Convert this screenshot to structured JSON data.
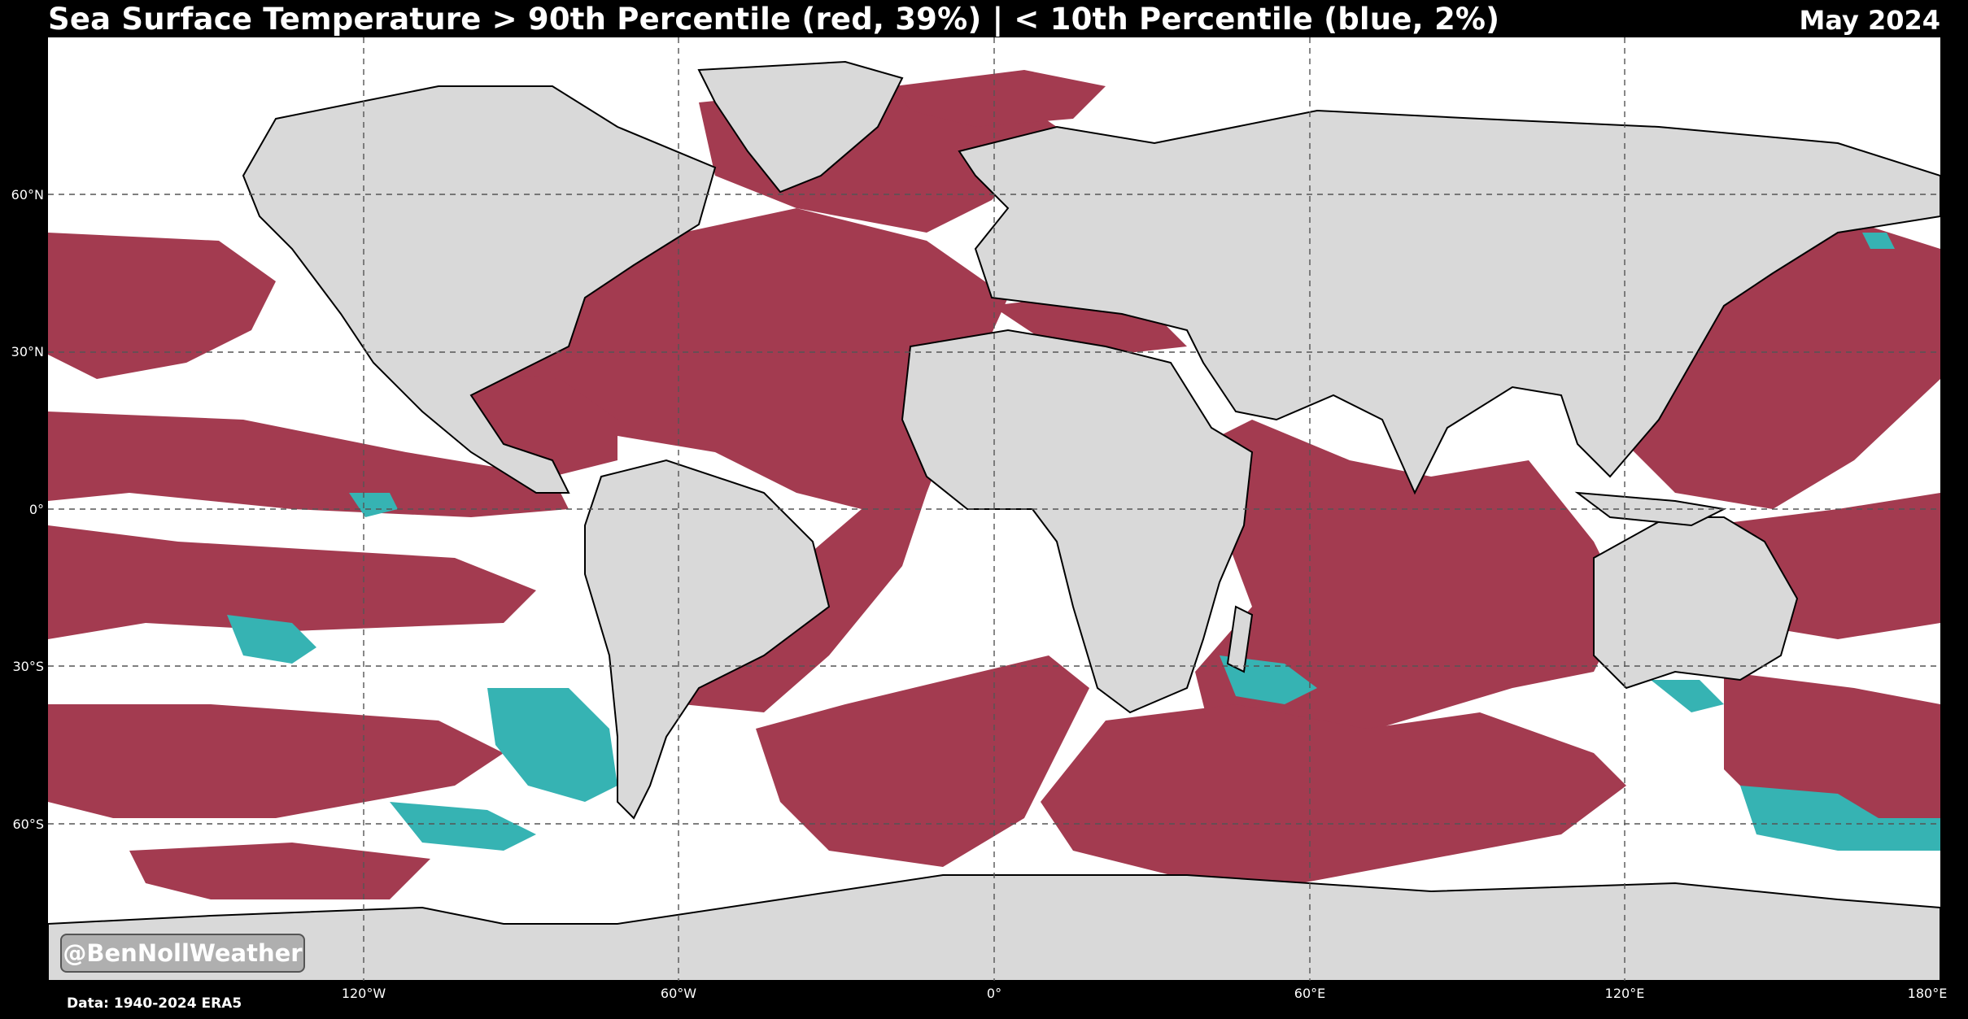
{
  "header": {
    "title": "Sea Surface Temperature > 90th Percentile (red, 39%) | < 10th Percentile (blue, 2%)",
    "date": "May 2024"
  },
  "map": {
    "projection": "equirectangular",
    "lat_labels": [
      "60°N",
      "30°N",
      "0°",
      "30°S",
      "60°S"
    ],
    "lon_labels": [
      "120°W",
      "60°W",
      "0°",
      "60°E",
      "120°E",
      "180°E"
    ],
    "legend": {
      "warm": {
        "label": "> 90th Percentile",
        "share": "39%",
        "color": "#a33b50"
      },
      "cold": {
        "label": "< 10th Percentile",
        "share": "2%",
        "color": "#36b3b3"
      }
    },
    "colors": {
      "ocean": "#ffffff",
      "land": "#d9d9d9",
      "background": "#000000"
    }
  },
  "watermark": "@BenNollWeather",
  "source": "Data: 1940-2024 ERA5"
}
